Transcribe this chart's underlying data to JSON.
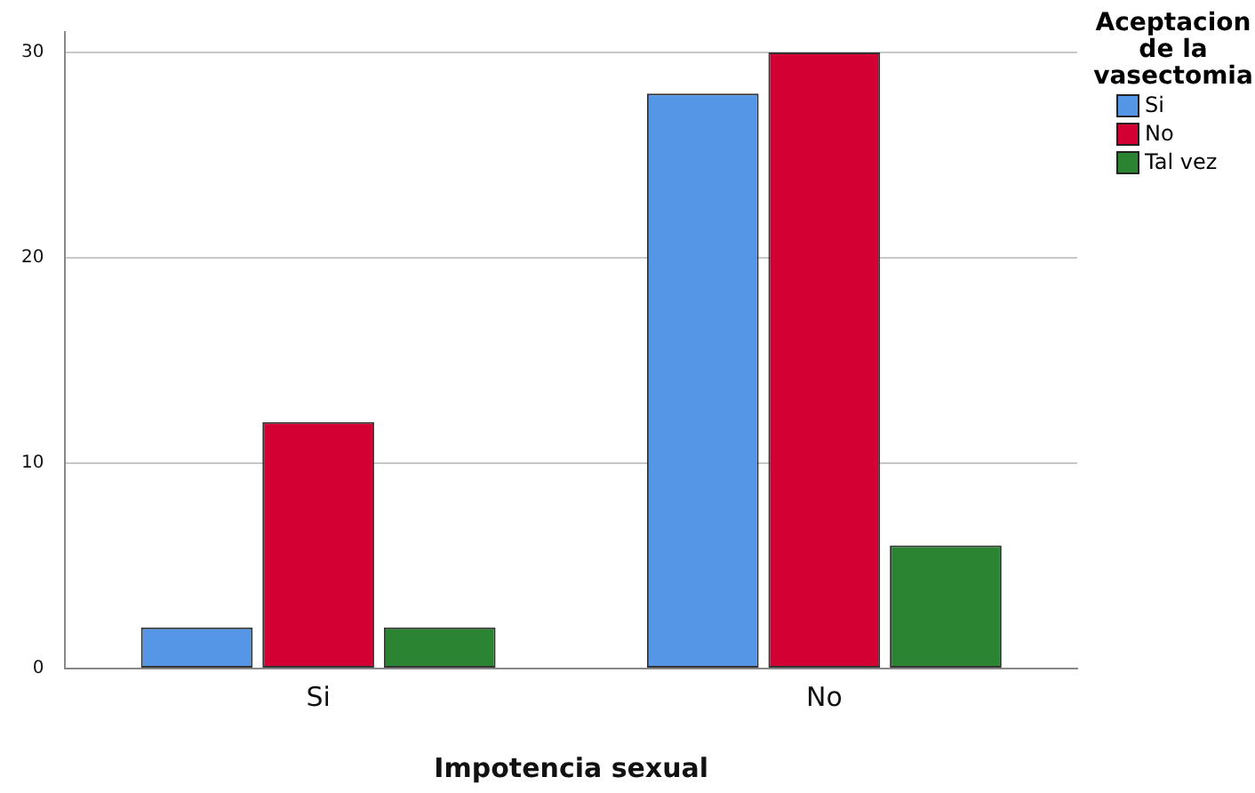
{
  "chart_data": {
    "type": "bar",
    "xlabel": "Impotencia sexual",
    "legend_title": "Aceptacion de la vasectomia",
    "categories": [
      "Si",
      "No"
    ],
    "series": [
      {
        "name": "Si",
        "color": "#5596e6",
        "values": [
          2,
          28
        ]
      },
      {
        "name": "No",
        "color": "#d30034",
        "values": [
          12,
          30
        ]
      },
      {
        "name": "Tal vez",
        "color": "#2a8431",
        "values": [
          2,
          6
        ]
      }
    ],
    "ylim": [
      0,
      31
    ],
    "yticks": [
      0,
      10,
      20,
      30
    ],
    "grid": "y",
    "legend": "top right"
  }
}
